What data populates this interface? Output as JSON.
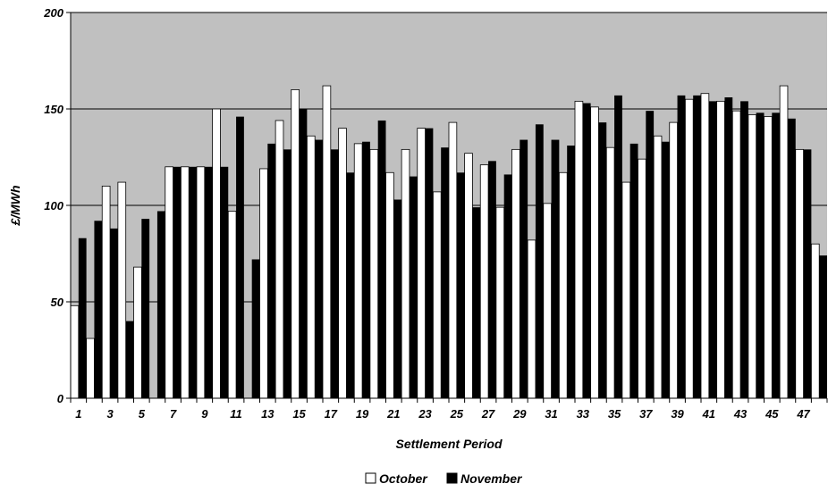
{
  "chart_data": {
    "type": "bar",
    "title": "",
    "xlabel": "Settlement Period",
    "ylabel": "£/MWh",
    "ylim": [
      0,
      200
    ],
    "yticks": [
      0,
      50,
      100,
      150,
      200
    ],
    "grid": true,
    "legend_position": "bottom",
    "colors": {
      "plot_background": "#c0c0c0",
      "october": "#ffffff",
      "november": "#000000"
    },
    "categories": [
      "1",
      "2",
      "3",
      "4",
      "5",
      "6",
      "7",
      "8",
      "9",
      "10",
      "11",
      "12",
      "13",
      "14",
      "15",
      "16",
      "17",
      "18",
      "19",
      "20",
      "21",
      "22",
      "23",
      "24",
      "25",
      "26",
      "27",
      "28",
      "29",
      "30",
      "31",
      "32",
      "33",
      "34",
      "35",
      "36",
      "37",
      "38",
      "39",
      "40",
      "41",
      "42",
      "43",
      "44",
      "45",
      "46",
      "47",
      "48"
    ],
    "x_tick_labels": [
      "1",
      "",
      "3",
      "",
      "5",
      "",
      "7",
      "",
      "9",
      "",
      "11",
      "",
      "13",
      "",
      "15",
      "",
      "17",
      "",
      "19",
      "",
      "21",
      "",
      "23",
      "",
      "25",
      "",
      "27",
      "",
      "29",
      "",
      "31",
      "",
      "33",
      "",
      "35",
      "",
      "37",
      "",
      "39",
      "",
      "41",
      "",
      "43",
      "",
      "45",
      "",
      "47",
      ""
    ],
    "series": [
      {
        "name": "October",
        "values": [
          48,
          31,
          110,
          112,
          68,
          0,
          120,
          120,
          120,
          150,
          97,
          0,
          119,
          144,
          160,
          136,
          162,
          140,
          132,
          129,
          117,
          129,
          140,
          107,
          143,
          127,
          121,
          99,
          129,
          82,
          101,
          117,
          154,
          151,
          130,
          112,
          124,
          136,
          143,
          155,
          158,
          154,
          149,
          147,
          146,
          162,
          129,
          80
        ]
      },
      {
        "name": "November",
        "values": [
          83,
          92,
          88,
          40,
          93,
          97,
          120,
          120,
          120,
          120,
          146,
          72,
          132,
          129,
          150,
          134,
          129,
          117,
          133,
          144,
          103,
          115,
          140,
          130,
          117,
          99,
          123,
          116,
          134,
          142,
          134,
          131,
          153,
          143,
          157,
          132,
          149,
          133,
          157,
          157,
          154,
          156,
          154,
          148,
          148,
          145,
          129,
          74
        ]
      }
    ]
  }
}
